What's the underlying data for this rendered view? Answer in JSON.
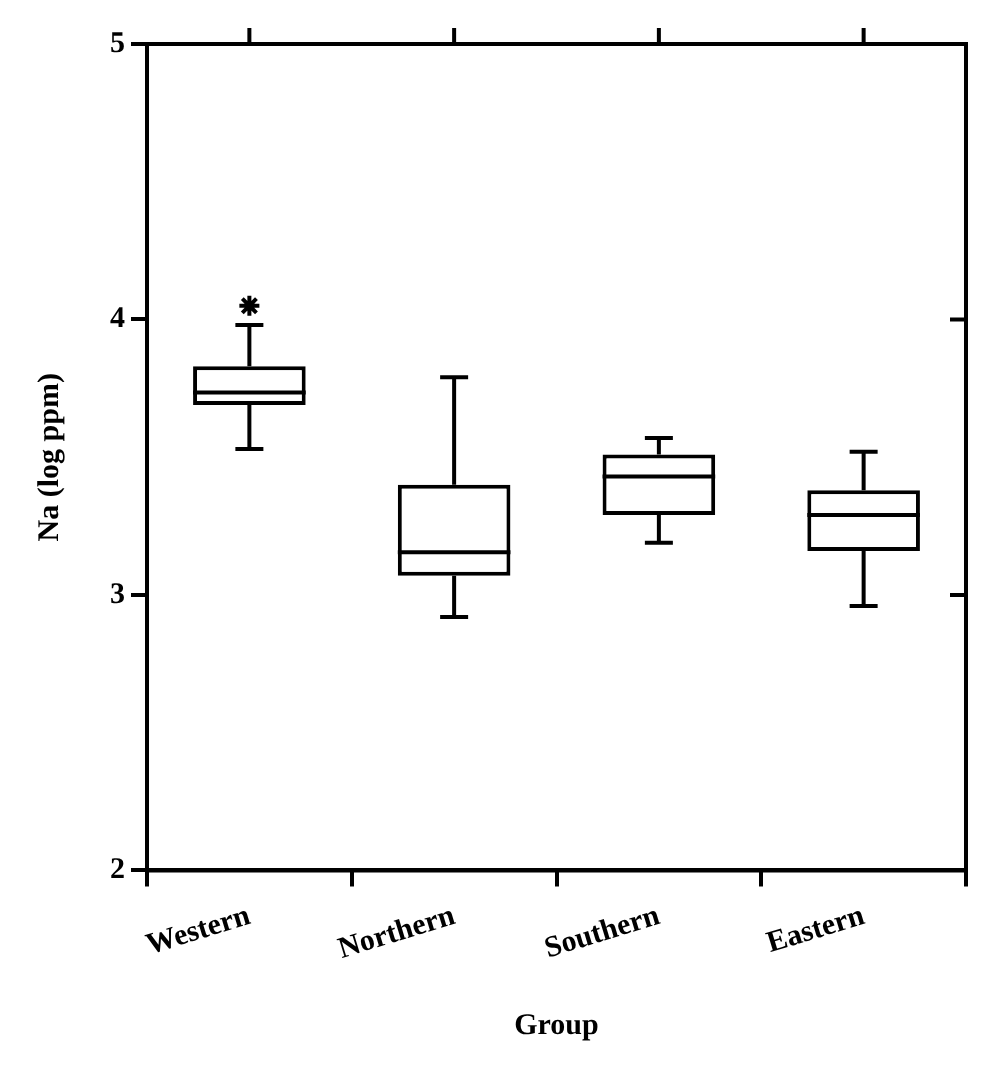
{
  "chart_data": {
    "type": "box",
    "xlabel": "Group",
    "ylabel": "Na (log ppm)",
    "categories": [
      "Western",
      "Northern",
      "Southern",
      "Eastern"
    ],
    "boxes": [
      {
        "low": 3.53,
        "q1": 3.69,
        "median": 3.735,
        "q3": 3.83,
        "high": 3.98,
        "outliers": [
          4.05
        ]
      },
      {
        "low": 2.92,
        "q1": 3.07,
        "median": 3.155,
        "q3": 3.4,
        "high": 3.79
      },
      {
        "low": 3.19,
        "q1": 3.29,
        "median": 3.43,
        "q3": 3.51,
        "high": 3.57
      },
      {
        "low": 2.96,
        "q1": 3.16,
        "median": 3.29,
        "q3": 3.38,
        "high": 3.52
      }
    ],
    "ylim": [
      2,
      5
    ],
    "yticks": [
      2,
      3,
      4,
      5
    ],
    "grid": false,
    "legend": false,
    "marker": "star"
  }
}
